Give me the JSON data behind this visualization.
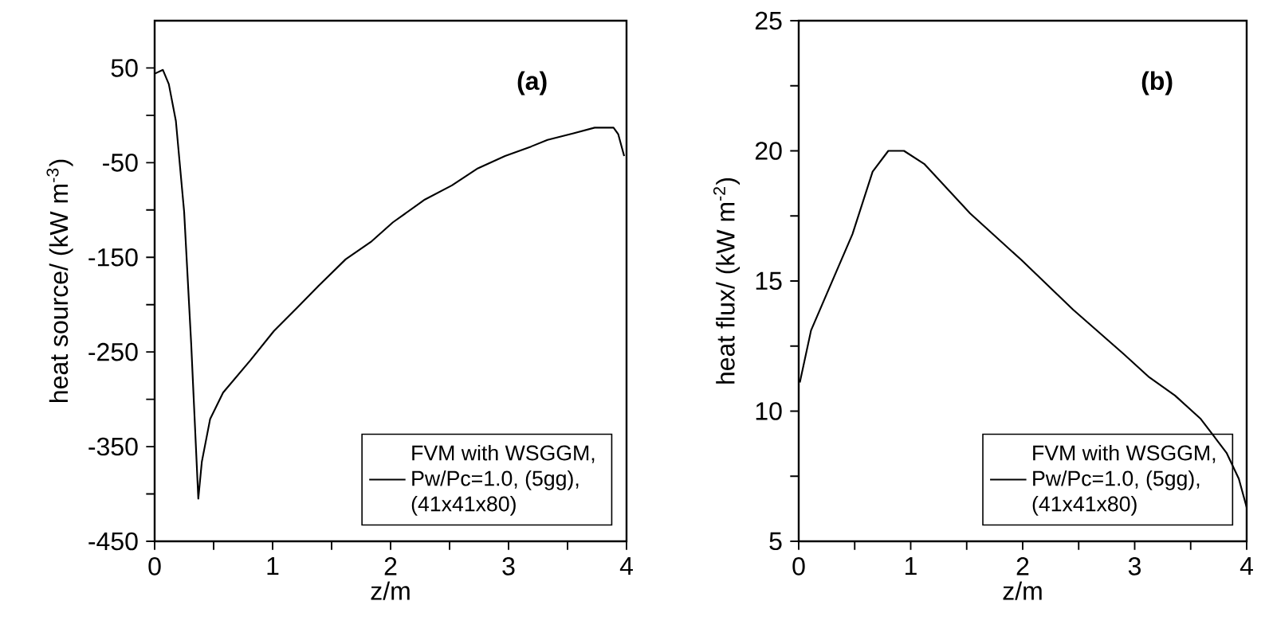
{
  "chart_data": [
    {
      "type": "line",
      "xlabel": "z/m",
      "ylabel": "heat source/ (kW m$^{-3}$)",
      "annotations": [
        "(a)"
      ],
      "legend": "bottom right",
      "xlim": [
        0,
        4
      ],
      "ylim": [
        -450,
        100
      ],
      "xticks": [
        0,
        {
          "value": 0.5,
          "label": null
        },
        1,
        {
          "value": 1.5,
          "label": null
        },
        2,
        {
          "value": 2.5,
          "label": null
        },
        3,
        {
          "value": 3.5,
          "label": null
        },
        4
      ],
      "yticks": [
        -450,
        {
          "value": -400,
          "label": null
        },
        -350,
        {
          "value": -300,
          "label": null
        },
        -250,
        {
          "value": -200,
          "label": null
        },
        -150,
        {
          "value": -100,
          "label": null
        },
        -50,
        {
          "value": 0,
          "label": null
        },
        50
      ],
      "series": [
        {
          "name": "FVM with WSGGM, Pw/Pc=1.0, (5gg), (41x41x80)",
          "color": "#000000",
          "x": [
            0,
            0.07,
            0.12,
            0.18,
            0.25,
            0.31,
            0.37,
            0.4,
            0.47,
            0.58,
            0.81,
            1.01,
            1.21,
            1.39,
            1.62,
            1.84,
            2.02,
            2.29,
            2.52,
            2.74,
            2.97,
            3.19,
            3.33,
            3.55,
            3.73,
            3.89,
            3.93,
            3.98
          ],
          "values": [
            44,
            48,
            33,
            -6,
            -102,
            -242,
            -405,
            -366,
            -321,
            -293,
            -259,
            -228,
            -203,
            -180,
            -152,
            -133,
            -113,
            -89,
            -74,
            -56,
            -43,
            -33,
            -26,
            -19,
            -13,
            -13,
            -20,
            -43
          ]
        }
      ]
    },
    {
      "type": "line",
      "xlabel": "z/m",
      "ylabel": "heat flux/ (kW m$^{-2}$)",
      "annotations": [
        "(b)"
      ],
      "legend": "bottom right",
      "xlim": [
        0,
        4
      ],
      "ylim": [
        5,
        25
      ],
      "xticks": [
        0,
        {
          "value": 0.5,
          "label": null
        },
        1,
        {
          "value": 1.5,
          "label": null
        },
        2,
        {
          "value": 2.5,
          "label": null
        },
        3,
        {
          "value": 3.5,
          "label": null
        },
        4
      ],
      "yticks": [
        5,
        {
          "value": 7.5,
          "label": null
        },
        10,
        {
          "value": 12.5,
          "label": null
        },
        15,
        {
          "value": 17.5,
          "label": null
        },
        20,
        {
          "value": 22.5,
          "label": null
        },
        25
      ],
      "series": [
        {
          "name": "FVM with WSGGM, Pw/Pc=1.0, (5gg), (41x41x80)",
          "color": "#000000",
          "x": [
            0.01,
            0.11,
            0.21,
            0.34,
            0.48,
            0.66,
            0.8,
            0.94,
            1.12,
            1.53,
            1.99,
            2.45,
            2.9,
            3.13,
            3.36,
            3.59,
            3.82,
            3.93,
            4.0
          ],
          "values": [
            11.1,
            13.1,
            14.1,
            15.4,
            16.8,
            19.2,
            20.0,
            20.0,
            19.5,
            17.6,
            15.8,
            13.9,
            12.2,
            11.3,
            10.6,
            9.7,
            8.4,
            7.4,
            6.3
          ]
        }
      ]
    }
  ]
}
